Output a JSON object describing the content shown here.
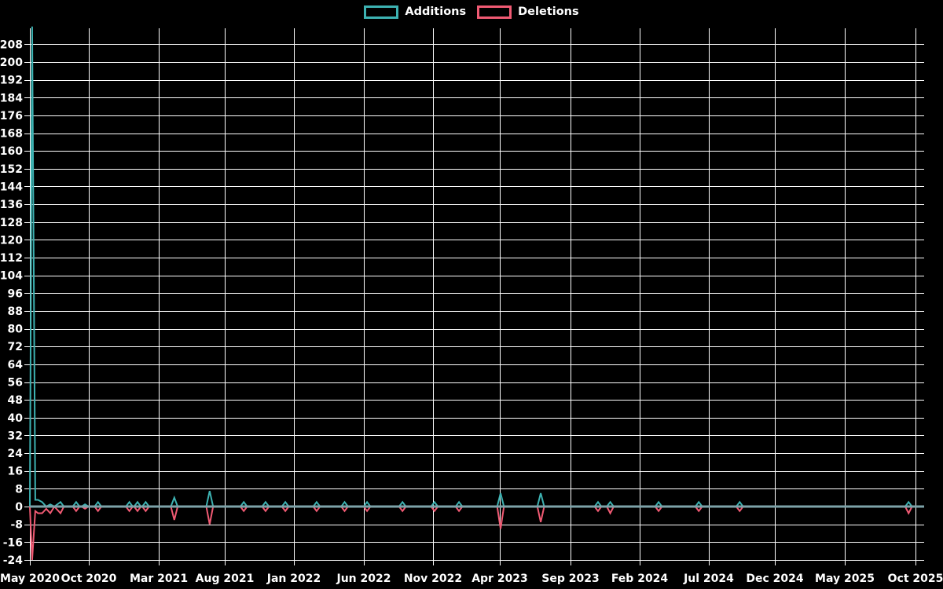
{
  "legend": {
    "items": [
      {
        "label": "Additions",
        "color": "#3db2b2"
      },
      {
        "label": "Deletions",
        "color": "#f05a73"
      }
    ]
  },
  "colors": {
    "background": "#000000",
    "grid": "#ffffff",
    "zero_line": "#7da2a8",
    "additions": "#3db2b2",
    "deletions": "#f05a73",
    "text": "#ffffff"
  },
  "chart_data": {
    "type": "line",
    "title": "",
    "legend_position": "top",
    "grid": true,
    "series_names": [
      "Additions",
      "Deletions"
    ],
    "x_tick_labels": [
      "May 2020",
      "Oct 2020",
      "Mar 2021",
      "Aug 2021",
      "Jan 2022",
      "Jun 2022",
      "Nov 2022",
      "Apr 2023",
      "Sep 2023",
      "Feb 2024",
      "Jul 2024",
      "Dec 2024",
      "May 2025",
      "Oct 2025"
    ],
    "y_ticks": [
      208,
      200,
      192,
      184,
      176,
      168,
      160,
      152,
      144,
      136,
      128,
      120,
      112,
      104,
      96,
      88,
      80,
      72,
      64,
      56,
      48,
      40,
      32,
      24,
      16,
      8,
      0,
      -8,
      -16,
      -24
    ],
    "ylim": [
      -27,
      216
    ],
    "y_tick_step": 8,
    "point_format": "m = months after the May 2020 tick; a = weekly additions; d = weekly deletions (negative). Line sits at 0 between listed events.",
    "points": [
      {
        "m": 0.0,
        "a": 0,
        "d": 0
      },
      {
        "m": 0.17,
        "a": 216,
        "d": -24
      },
      {
        "m": 0.4,
        "a": 3,
        "d": -2
      },
      {
        "m": 0.6,
        "a": 3,
        "d": -3
      },
      {
        "m": 0.9,
        "a": 2,
        "d": -3
      },
      {
        "m": 1.2,
        "a": 0,
        "d": -1
      },
      {
        "m": 1.5,
        "a": 1,
        "d": -3
      },
      {
        "m": 1.8,
        "a": 0,
        "d": 0
      },
      {
        "m": 2.25,
        "a": 2,
        "d": -3
      },
      {
        "m": 3.4,
        "a": 2,
        "d": -2
      },
      {
        "m": 4.05,
        "a": 1,
        "d": -1
      },
      {
        "m": 5.0,
        "a": 2,
        "d": -2
      },
      {
        "m": 7.3,
        "a": 2,
        "d": -2
      },
      {
        "m": 7.9,
        "a": 2,
        "d": -2
      },
      {
        "m": 8.5,
        "a": 2,
        "d": -2
      },
      {
        "m": 10.6,
        "a": 4,
        "d": -6
      },
      {
        "m": 13.2,
        "a": 7,
        "d": -8
      },
      {
        "m": 15.7,
        "a": 2,
        "d": -2
      },
      {
        "m": 17.3,
        "a": 2,
        "d": -2
      },
      {
        "m": 18.75,
        "a": 2,
        "d": -2
      },
      {
        "m": 21.05,
        "a": 2,
        "d": -2
      },
      {
        "m": 23.1,
        "a": 2,
        "d": -2
      },
      {
        "m": 24.75,
        "a": 2,
        "d": -2
      },
      {
        "m": 27.35,
        "a": 2,
        "d": -2
      },
      {
        "m": 29.7,
        "a": 2,
        "d": -2
      },
      {
        "m": 31.5,
        "a": 2,
        "d": -2
      },
      {
        "m": 34.55,
        "a": 6,
        "d": -10
      },
      {
        "m": 37.5,
        "a": 6,
        "d": -7
      },
      {
        "m": 41.7,
        "a": 2,
        "d": -2
      },
      {
        "m": 42.6,
        "a": 2,
        "d": -3
      },
      {
        "m": 46.15,
        "a": 2,
        "d": -2
      },
      {
        "m": 49.1,
        "a": 2,
        "d": -2
      },
      {
        "m": 52.1,
        "a": 2,
        "d": -2
      },
      {
        "m": 64.5,
        "a": 2,
        "d": -3
      },
      {
        "m": 65.6,
        "a": 0,
        "d": 0
      }
    ]
  }
}
